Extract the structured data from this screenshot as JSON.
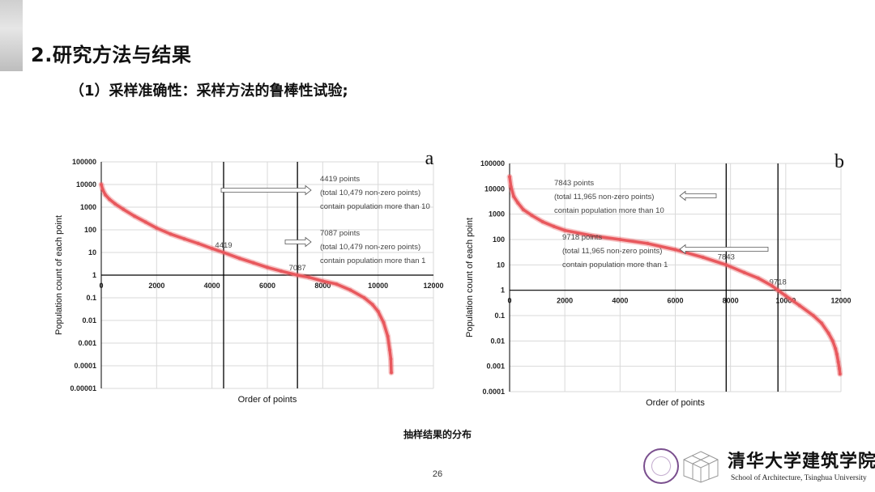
{
  "header": {
    "title": "2.研究方法与结果",
    "subtitle": "（1）采样准确性：采样方法的鲁棒性试验;"
  },
  "caption": "抽样结果的分布",
  "page_number": "26",
  "footer": {
    "school_cn": "清华大学建筑学院",
    "school_en": "School of Architecture, Tsinghua University"
  },
  "colors": {
    "curve": "#e8585d",
    "grid": "#d9d9d9",
    "axis": "#000000"
  },
  "chart_data": [
    {
      "type": "line",
      "panel_label": "a",
      "xlabel": "Order of points",
      "ylabel": "Population count of each point",
      "y_scale": "log",
      "xlim": [
        0,
        12000
      ],
      "ylim": [
        1e-05,
        100000
      ],
      "x_ticks": [
        "0",
        "2000",
        "4000",
        "6000",
        "8000",
        "10000",
        "12000"
      ],
      "y_ticks": [
        "100000",
        "10000",
        "1000",
        "100",
        "10",
        "1",
        "0.1",
        "0.01",
        "0.001",
        "0.0001",
        "0.00001"
      ],
      "grid": true,
      "series": [
        {
          "x": [
            0,
            50,
            150,
            300,
            500,
            800,
            1200,
            1600,
            2000,
            2500,
            3000,
            3500,
            4000,
            4419,
            5000,
            5500,
            6000,
            6500,
            7087,
            7500,
            8000,
            8500,
            9000,
            9500,
            9800,
            10000,
            10200,
            10350,
            10420,
            10460,
            10479
          ],
          "y": [
            10000,
            6000,
            3500,
            2200,
            1400,
            800,
            400,
            220,
            120,
            65,
            40,
            25,
            15,
            10,
            5.5,
            3.5,
            2.2,
            1.5,
            1,
            0.8,
            0.55,
            0.4,
            0.22,
            0.1,
            0.05,
            0.025,
            0.008,
            0.002,
            0.0005,
            0.0002,
            5e-05
          ]
        }
      ],
      "cutoffs": [
        {
          "x": 4419,
          "label": "4419",
          "y_level": 10
        },
        {
          "x": 7087,
          "label": "7087",
          "y_level": 1
        }
      ],
      "annotations": [
        {
          "lines": [
            "4419 points",
            "(total 10,479 non-zero points)",
            "contain population more than 10"
          ]
        },
        {
          "lines": [
            "7087 points",
            "(total 10,479 non-zero points)",
            "contain population more than 1"
          ]
        }
      ]
    },
    {
      "type": "line",
      "panel_label": "b",
      "xlabel": "Order of points",
      "ylabel": "Population count of each point",
      "y_scale": "log",
      "xlim": [
        0,
        12000
      ],
      "ylim": [
        0.0001,
        100000
      ],
      "x_ticks": [
        "0",
        "2000",
        "4000",
        "6000",
        "8000",
        "10000",
        "12000"
      ],
      "y_ticks": [
        "100000",
        "10000",
        "1000",
        "100",
        "10",
        "1",
        "0.1",
        "0.01",
        "0.001",
        "0.0001"
      ],
      "grid": true,
      "series": [
        {
          "x": [
            0,
            50,
            150,
            300,
            500,
            800,
            1200,
            1600,
            2000,
            3000,
            4000,
            5000,
            6000,
            7000,
            7843,
            8500,
            9000,
            9500,
            9718,
            10000,
            10500,
            11000,
            11300,
            11550,
            11700,
            11800,
            11850,
            11900,
            11940,
            11965
          ],
          "y": [
            30000,
            12000,
            5000,
            2800,
            1500,
            900,
            500,
            330,
            230,
            140,
            100,
            70,
            40,
            20,
            10,
            5,
            3,
            1.5,
            1,
            0.6,
            0.25,
            0.1,
            0.05,
            0.02,
            0.01,
            0.005,
            0.003,
            0.0015,
            0.0008,
            0.0005
          ]
        }
      ],
      "cutoffs": [
        {
          "x": 7843,
          "label": "7843",
          "y_level": 10
        },
        {
          "x": 9718,
          "label": "9718",
          "y_level": 1
        }
      ],
      "annotations": [
        {
          "lines": [
            "7843 points",
            "(total 11,965 non-zero points)",
            "contain population more than 10"
          ]
        },
        {
          "lines": [
            "9718 points",
            "(total 11,965 non-zero points)",
            "contain population more than 1"
          ]
        }
      ]
    }
  ]
}
